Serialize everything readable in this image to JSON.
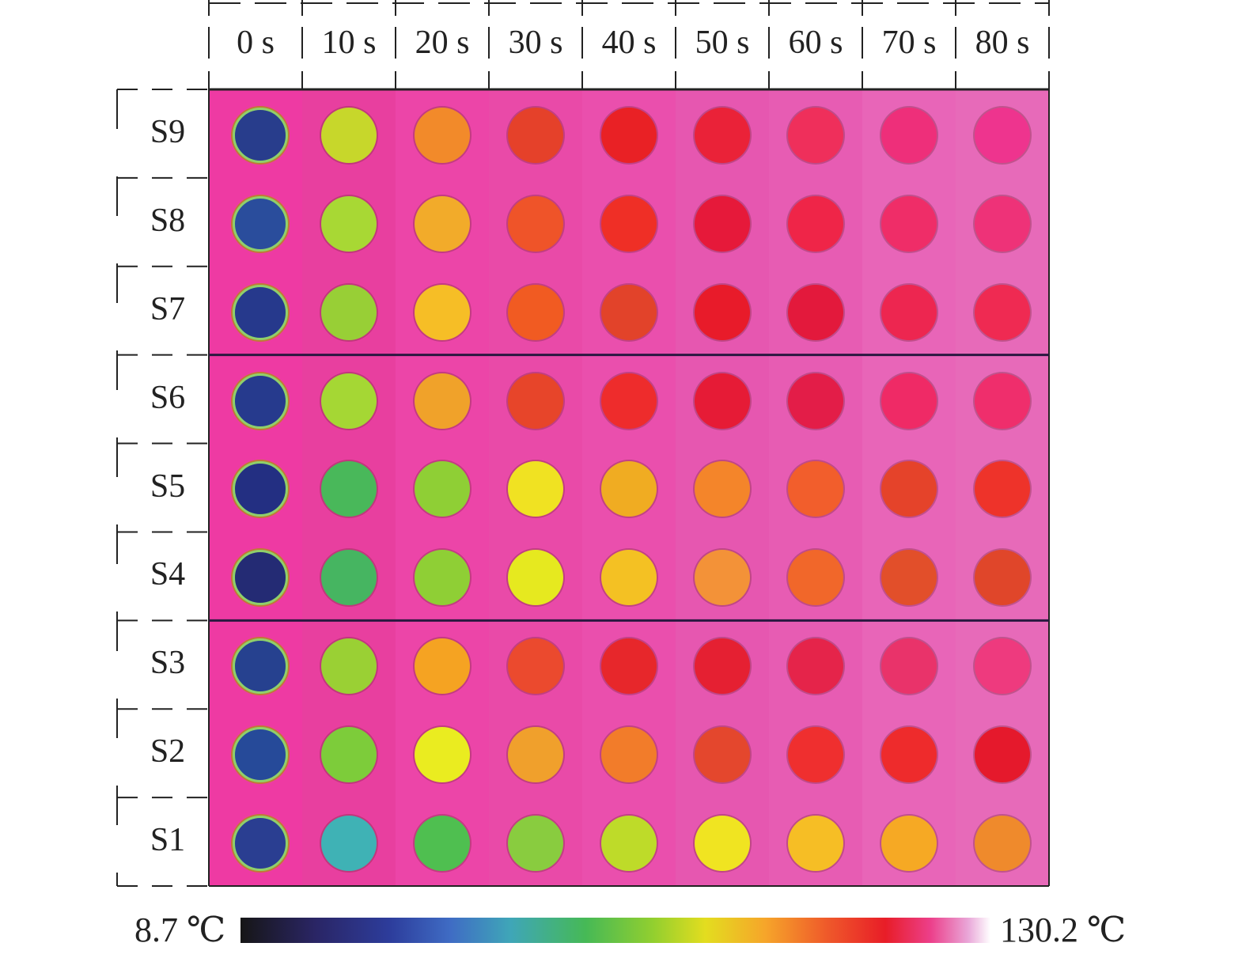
{
  "time_labels": [
    "0 s",
    "10 s",
    "20 s",
    "30 s",
    "40 s",
    "50 s",
    "60 s",
    "70 s",
    "80 s"
  ],
  "sample_labels": [
    "S9",
    "S8",
    "S7",
    "S6",
    "S5",
    "S4",
    "S3",
    "S2",
    "S1"
  ],
  "thermal_rows": [
    {
      "sample": "S9",
      "colors": [
        "#283d8c",
        "#c7d72b",
        "#f28a2a",
        "#e5412a",
        "#e92125",
        "#ea2238",
        "#ef2f5b",
        "#ee2f7a",
        "#ee348e"
      ]
    },
    {
      "sample": "S8",
      "colors": [
        "#2a4d9c",
        "#a8d834",
        "#f2ab2a",
        "#ef5429",
        "#ef2f26",
        "#e6193a",
        "#ef2548",
        "#ef2d68",
        "#ee3278"
      ]
    },
    {
      "sample": "S7",
      "colors": [
        "#26398c",
        "#98cf36",
        "#f6be26",
        "#f15b22",
        "#e2432a",
        "#e81b2a",
        "#e3193c",
        "#ed2650",
        "#ef2a52"
      ]
    },
    {
      "sample": "S6",
      "colors": [
        "#263a8d",
        "#a5d734",
        "#f0a22a",
        "#e7452a",
        "#ee2c2c",
        "#e61b36",
        "#e31d48",
        "#ef2a66",
        "#ef2e6c"
      ]
    },
    {
      "sample": "S5",
      "colors": [
        "#232f82",
        "#49b85a",
        "#8fcf35",
        "#f0e222",
        "#f0ac22",
        "#f4852a",
        "#f25e2c",
        "#e5432a",
        "#ee332a"
      ]
    },
    {
      "sample": "S4",
      "colors": [
        "#242b74",
        "#46b561",
        "#8fcf35",
        "#e6e91f",
        "#f4c123",
        "#f39238",
        "#f1672a",
        "#e24f2a",
        "#e0462a"
      ]
    },
    {
      "sample": "S3",
      "colors": [
        "#26418f",
        "#9ad034",
        "#f5a322",
        "#eb4a2e",
        "#e7272b",
        "#e52032",
        "#e5244a",
        "#e9336a",
        "#ee3a7e"
      ]
    },
    {
      "sample": "S2",
      "colors": [
        "#264a99",
        "#7dcc3a",
        "#eaec20",
        "#f0a02c",
        "#f27c2a",
        "#e4472d",
        "#ef2f2f",
        "#ee2b2c",
        "#e5192c"
      ]
    },
    {
      "sample": "S1",
      "colors": [
        "#2a3e91",
        "#3fb2b5",
        "#4fbf50",
        "#89cc3f",
        "#bedb29",
        "#f0e421",
        "#f6be25",
        "#f6a924",
        "#ef8a2c"
      ]
    }
  ],
  "colorbar": {
    "min_label": "8.7 ℃",
    "max_label": "130.2 ℃"
  }
}
